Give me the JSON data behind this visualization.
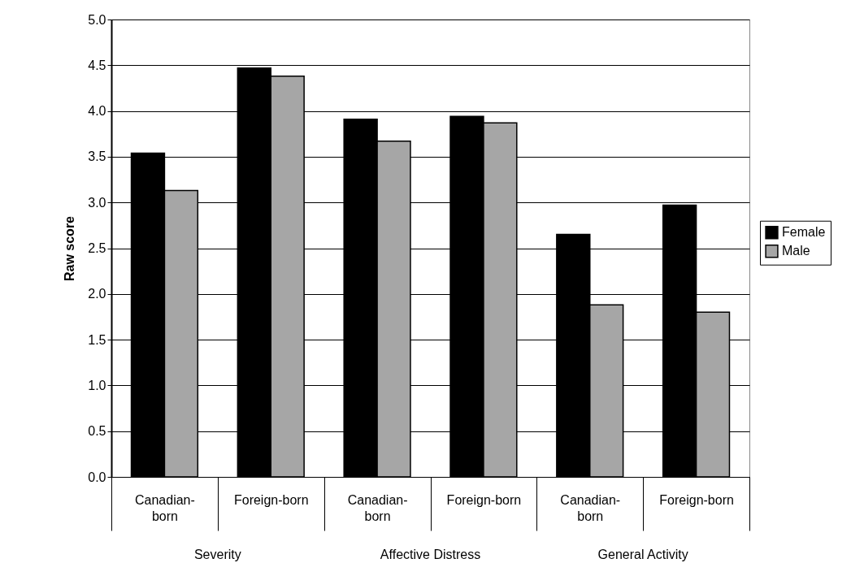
{
  "chart_data": {
    "type": "bar",
    "ylabel": "Raw score",
    "categories": [
      "Canadian-born",
      "Foreign-born",
      "Canadian-born",
      "Foreign-born",
      "Canadian-born",
      "Foreign-born"
    ],
    "series": [
      {
        "name": "Female",
        "color": "#000000",
        "values": [
          3.54,
          4.47,
          3.91,
          3.94,
          2.65,
          2.97
        ]
      },
      {
        "name": "Male",
        "color": "#a6a6a6",
        "values": [
          3.13,
          4.38,
          3.67,
          3.87,
          1.88,
          1.8
        ]
      }
    ],
    "annotations": [
      "Severity",
      "Affective Distress",
      "General Activity"
    ],
    "ylim": [
      0,
      5
    ],
    "yticks": [
      {
        "value": 0,
        "label": "0.0"
      },
      {
        "value": 0.5,
        "label": "0.5"
      },
      {
        "value": 1,
        "label": "1.0"
      },
      {
        "value": 1.5,
        "label": "1.5"
      },
      {
        "value": 2,
        "label": "2.0"
      },
      {
        "value": 2.5,
        "label": "2.5"
      },
      {
        "value": 3,
        "label": "3.0"
      },
      {
        "value": 3.5,
        "label": "3.5"
      },
      {
        "value": 4,
        "label": "4.0"
      },
      {
        "value": 4.5,
        "label": "4.5"
      },
      {
        "value": 5,
        "label": "5.0"
      }
    ],
    "grid": "y",
    "legend": "right"
  }
}
